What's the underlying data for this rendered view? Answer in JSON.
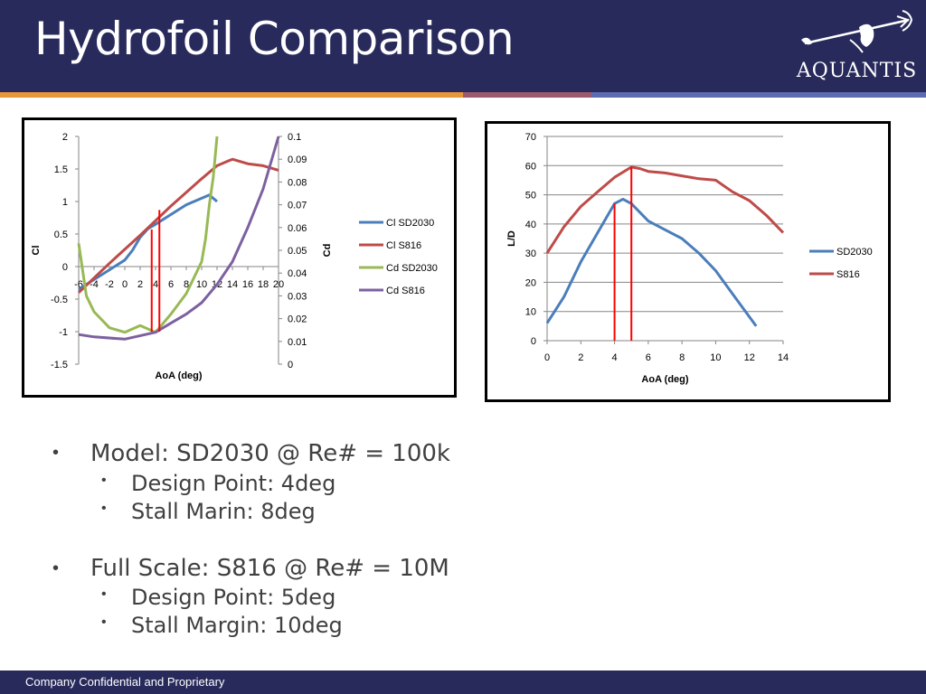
{
  "slide": {
    "title": "Hydrofoil Comparison",
    "logo_text": "AQUANTIS",
    "footer": "Company Confidential and Proprietary",
    "colors": {
      "header": "#282a5c",
      "stripe_orange": "#e8963a",
      "stripe_mauve": "#9c5a6e",
      "stripe_blue": "#5d6bb0"
    }
  },
  "bullets": {
    "model": {
      "title": "Model: SD2030 @ Re# = 100k",
      "items": [
        "Design Point: 4deg",
        "Stall Marin: 8deg"
      ]
    },
    "full_scale": {
      "title": "Full Scale: S816 @ Re# = 10M",
      "items": [
        "Design Point: 5deg",
        "Stall Margin: 10deg"
      ]
    }
  },
  "chart_data": [
    {
      "type": "line",
      "xlabel": "AoA (deg)",
      "ylabel": "Cl",
      "y2label": "Cd",
      "xlim": [
        -6,
        20
      ],
      "ylim": [
        -1.5,
        2
      ],
      "y2lim": [
        0,
        0.1
      ],
      "x_ticks": [
        "-6",
        "-4",
        "-2",
        "0",
        "2",
        "4",
        "6",
        "8",
        "10",
        "12",
        "14",
        "16",
        "18",
        "20"
      ],
      "y_ticks": [
        "2",
        "1.5",
        "1",
        "0.5",
        "0",
        "-0.5",
        "-1",
        "-1.5"
      ],
      "y2_ticks": [
        "0.1",
        "0.09",
        "0.08",
        "0.07",
        "0.06",
        "0.05",
        "0.04",
        "0.03",
        "0.02",
        "0.01",
        "0"
      ],
      "legend_position": "right",
      "series": [
        {
          "name": "Cl SD2030",
          "axis": "left",
          "color": "#4a7ebb",
          "x": [
            -6,
            -4,
            -2,
            0,
            1,
            2,
            3,
            4,
            6,
            8,
            10,
            11,
            12
          ],
          "y": [
            -0.35,
            -0.2,
            -0.05,
            0.1,
            0.25,
            0.45,
            0.58,
            0.65,
            0.8,
            0.95,
            1.05,
            1.1,
            1.0
          ]
        },
        {
          "name": "Cl S816",
          "axis": "left",
          "color": "#be4b48",
          "x": [
            -6,
            -2,
            2,
            6,
            10,
            12,
            14,
            16,
            18,
            20
          ],
          "y": [
            -0.4,
            0.05,
            0.48,
            0.93,
            1.35,
            1.55,
            1.65,
            1.58,
            1.55,
            1.48
          ]
        },
        {
          "name": "Cd SD2030",
          "axis": "right",
          "color": "#98b954",
          "x": [
            -6,
            -5,
            -4,
            -2,
            0,
            2,
            4,
            6,
            8,
            10,
            10.5,
            11,
            11.5,
            12
          ],
          "y": [
            0.053,
            0.03,
            0.023,
            0.016,
            0.014,
            0.017,
            0.014,
            0.022,
            0.031,
            0.045,
            0.055,
            0.07,
            0.082,
            0.1
          ]
        },
        {
          "name": "Cd S816",
          "axis": "right",
          "color": "#7d60a0",
          "x": [
            -6,
            -4,
            0,
            4,
            6,
            8,
            10,
            12,
            14,
            16,
            18,
            20
          ],
          "y": [
            0.013,
            0.012,
            0.011,
            0.014,
            0.018,
            0.022,
            0.027,
            0.035,
            0.045,
            0.06,
            0.077,
            0.1
          ]
        }
      ],
      "markers": [
        {
          "x": 3.5,
          "y_from": -1.0,
          "y_to": 0.57,
          "color": "#ff0000"
        },
        {
          "x": 4.5,
          "y_from": -1.0,
          "y_to": 0.87,
          "color": "#ff0000"
        }
      ]
    },
    {
      "type": "line",
      "xlabel": "AoA (deg)",
      "ylabel": "L/D",
      "xlim": [
        0,
        14
      ],
      "ylim": [
        0,
        70
      ],
      "x_ticks": [
        "0",
        "2",
        "4",
        "6",
        "8",
        "10",
        "12",
        "14"
      ],
      "y_ticks": [
        "70",
        "60",
        "50",
        "40",
        "30",
        "20",
        "10",
        "0"
      ],
      "grid": true,
      "legend_position": "right",
      "series": [
        {
          "name": "SD2030",
          "color": "#4a7ebb",
          "x": [
            0,
            1,
            2,
            3,
            4,
            4.5,
            5,
            6,
            7,
            8,
            9,
            10,
            11,
            12.4
          ],
          "y": [
            6,
            15,
            27,
            37,
            47,
            48.5,
            47,
            41,
            38,
            35,
            30,
            24,
            16,
            5
          ]
        },
        {
          "name": "S816",
          "color": "#be4b48",
          "x": [
            0,
            1,
            2,
            3,
            4,
            5,
            5.5,
            6,
            7,
            8,
            9,
            10,
            11,
            12,
            13,
            14
          ],
          "y": [
            30,
            39,
            46,
            51,
            56,
            59.5,
            59,
            58,
            57.5,
            56.5,
            55.5,
            55,
            51,
            48,
            43,
            37
          ]
        }
      ],
      "markers": [
        {
          "x": 4,
          "y_from": 0,
          "y_to": 47,
          "color": "#ff0000"
        },
        {
          "x": 5,
          "y_from": 0,
          "y_to": 59.5,
          "color": "#ff0000"
        }
      ]
    }
  ]
}
